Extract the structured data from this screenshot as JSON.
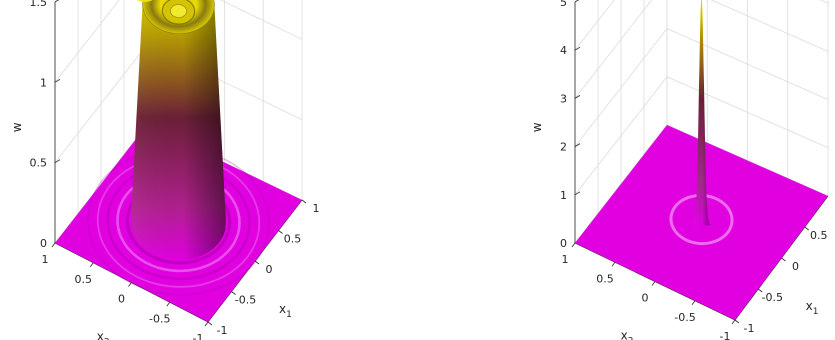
{
  "chart_data": [
    {
      "type": "surface",
      "title": "",
      "xlabel": "x",
      "xlabel_sub": "1",
      "ylabel": "x",
      "ylabel_sub": "2",
      "zlabel": "w",
      "x_ticks": [
        "-1",
        "-0.5",
        "0",
        "0.5",
        "1"
      ],
      "y_ticks": [
        "-1",
        "-0.5",
        "0",
        "0.5",
        "1"
      ],
      "z_ticks": [
        "0",
        "0.5",
        "1",
        "1.5"
      ],
      "xlim": [
        -1,
        1
      ],
      "ylim": [
        -1,
        1
      ],
      "zlim": [
        0,
        1.5
      ],
      "peak_value": 1.4,
      "rim_value": 1.35,
      "center_value": 1.15,
      "plateau_radius": 0.45,
      "ripple_amplitude": 0.05,
      "grid": true,
      "colors": {
        "low": "#e000e0",
        "mid": "#803040",
        "high": "#e6d800"
      }
    },
    {
      "type": "surface",
      "title": "",
      "xlabel": "x",
      "xlabel_sub": "1",
      "ylabel": "x",
      "ylabel_sub": "2",
      "zlabel": "w",
      "x_ticks": [
        "-1",
        "-0.5",
        "0",
        "0.5"
      ],
      "y_ticks": [
        "-1",
        "-0.5",
        "0",
        "0.5",
        "1"
      ],
      "z_ticks": [
        "0",
        "1",
        "2",
        "3",
        "4",
        "5"
      ],
      "xlim": [
        -1,
        1
      ],
      "ylim": [
        -1,
        1
      ],
      "zlim": [
        0,
        5
      ],
      "peak_value": 4.65,
      "peak_width": 0.2,
      "grid": true,
      "colors": {
        "low": "#e000e0",
        "mid": "#803040",
        "high": "#e6d800"
      }
    }
  ]
}
